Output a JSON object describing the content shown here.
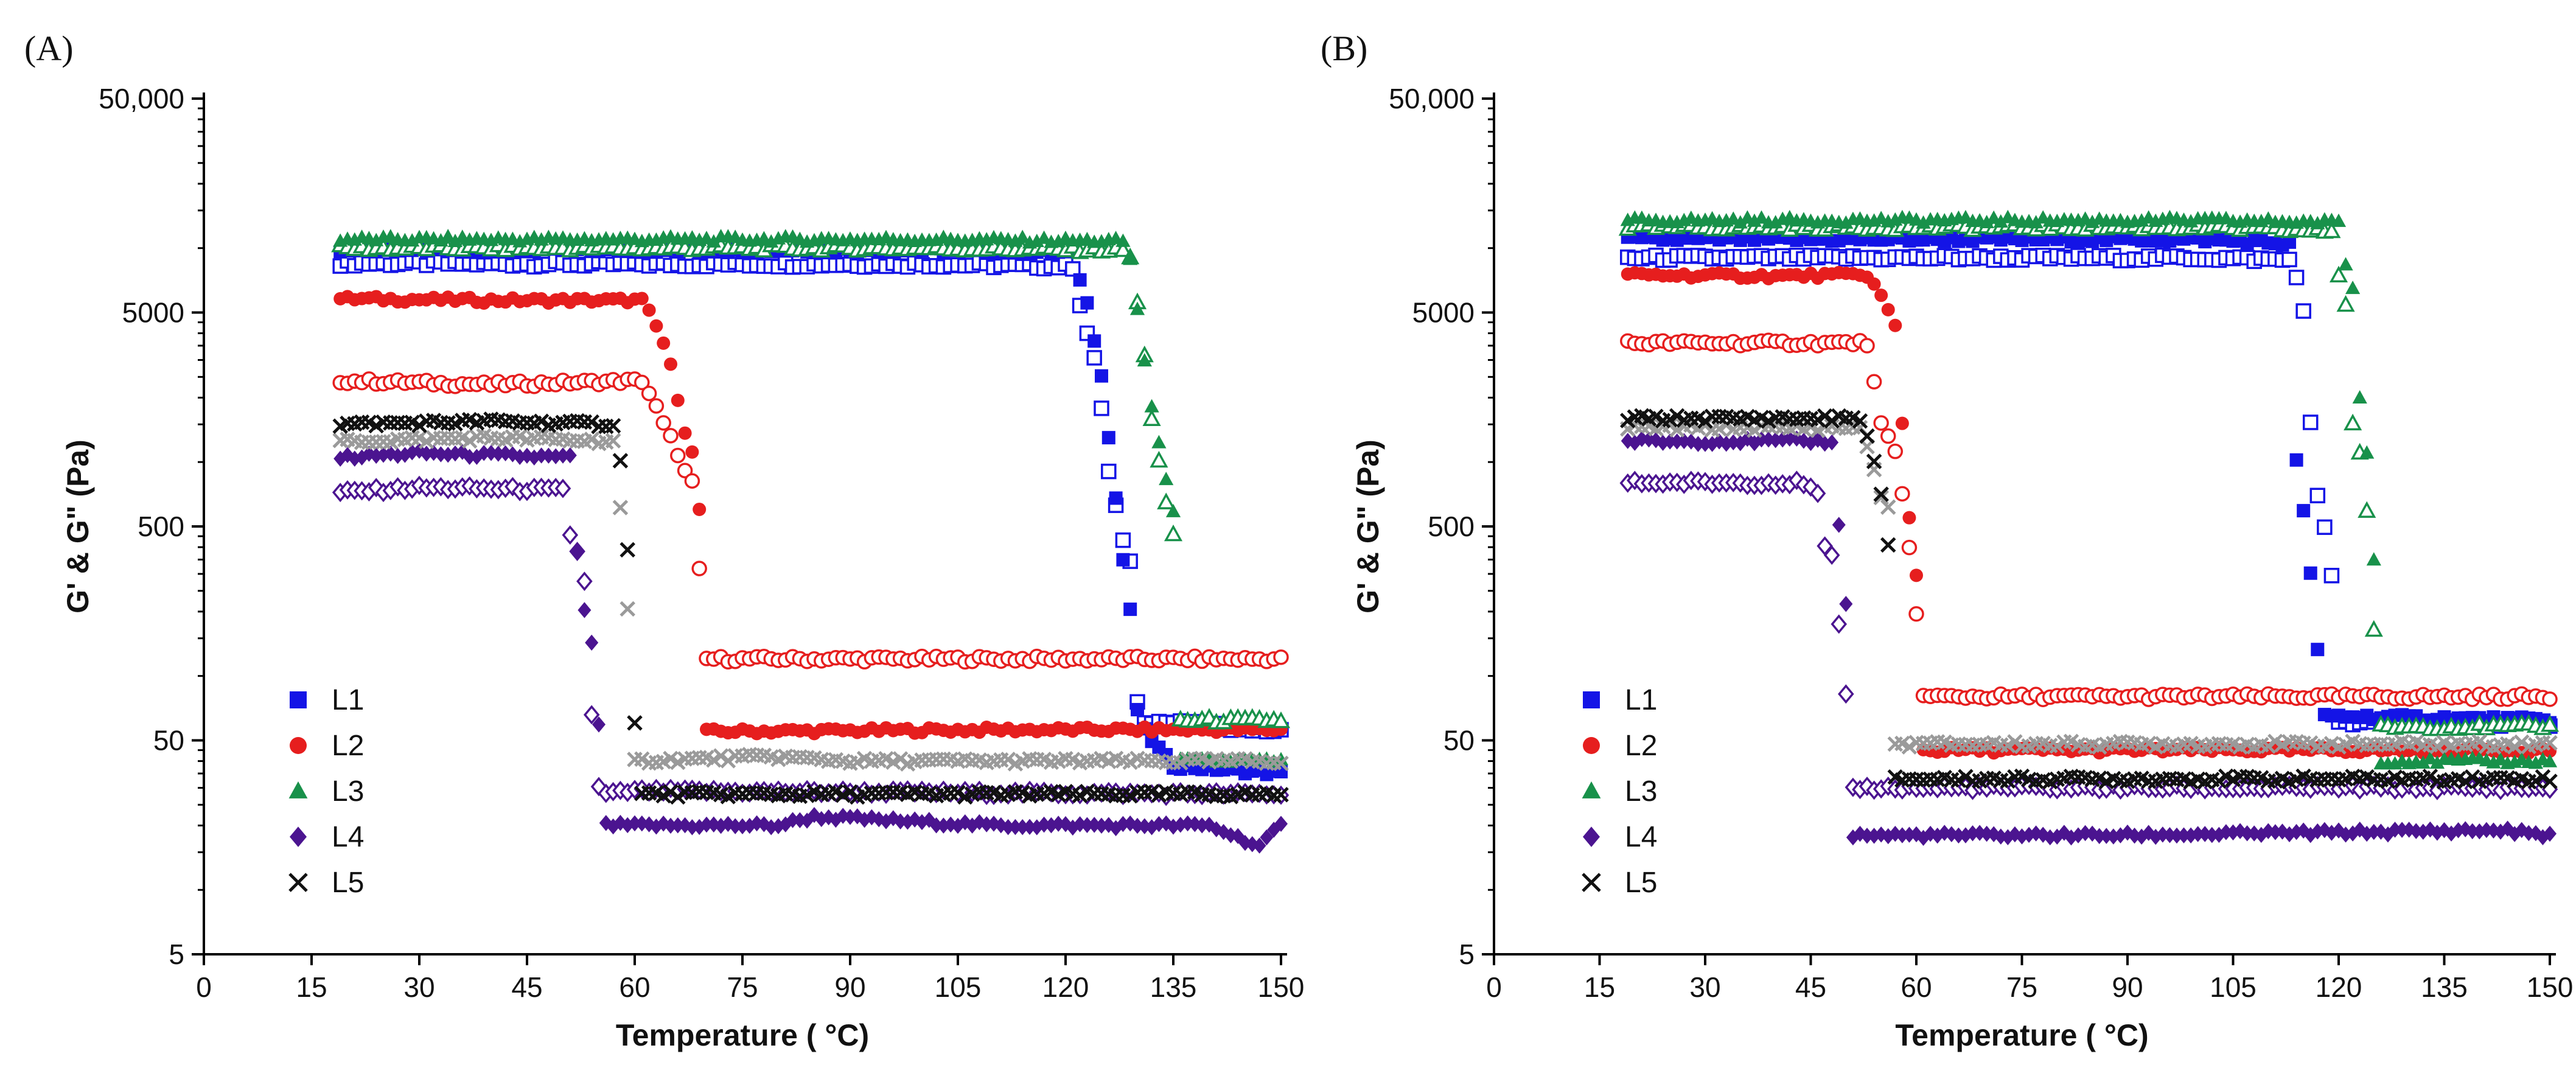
{
  "panels": [
    {
      "label": "(A)"
    },
    {
      "label": "(B)"
    }
  ],
  "chart_data": [
    {
      "type": "scatter",
      "panel": "(A)",
      "title": "",
      "xlabel": "Temperature ( °C)",
      "ylabel": "G' & G\" (Pa)",
      "xlim": [
        0,
        150
      ],
      "ylim": [
        5,
        50000
      ],
      "yscale": "log",
      "x_ticks": [
        0,
        15,
        30,
        45,
        60,
        75,
        90,
        105,
        120,
        135,
        150
      ],
      "y_ticks": [
        5,
        50,
        500,
        5000,
        50000
      ],
      "y_tick_labels": [
        "5",
        "50",
        "500",
        "5000",
        "50,000"
      ],
      "legend": [
        "L1",
        "L2",
        "L3",
        "L4",
        "L5"
      ],
      "legend_position": "bottom-left",
      "series": [
        {
          "name": "L1",
          "color": "#1414e6",
          "marker": "square",
          "Gprime": [
            [
              19,
              9800
            ],
            [
              60,
              9800
            ],
            [
              100,
              9800
            ],
            [
              121,
              9500
            ],
            [
              123,
              5500
            ],
            [
              125,
              2600
            ],
            [
              126,
              1300
            ],
            [
              127,
              680
            ],
            [
              128,
              350
            ],
            [
              129,
              200
            ],
            [
              130,
              70
            ],
            [
              131,
              55
            ],
            [
              135,
              38
            ],
            [
              150,
              35
            ]
          ],
          "Gdoubleprime": [
            [
              19,
              8500
            ],
            [
              60,
              8400
            ],
            [
              100,
              8400
            ],
            [
              121,
              8200
            ],
            [
              122,
              5500
            ],
            [
              123,
              4000
            ],
            [
              124,
              3000
            ],
            [
              125,
              1800
            ],
            [
              126,
              900
            ],
            [
              127,
              620
            ],
            [
              128,
              420
            ],
            [
              129,
              350
            ],
            [
              130,
              75
            ],
            [
              131,
              62
            ],
            [
              150,
              55
            ]
          ]
        },
        {
          "name": "L2",
          "color": "#e61e1e",
          "marker": "circle",
          "Gprime": [
            [
              19,
              5800
            ],
            [
              40,
              5700
            ],
            [
              61,
              5700
            ],
            [
              62,
              5000
            ],
            [
              63,
              4300
            ],
            [
              64,
              3600
            ],
            [
              65,
              2800
            ],
            [
              66,
              2000
            ],
            [
              67,
              1400
            ],
            [
              68,
              1100
            ],
            [
              69,
              600
            ],
            [
              70,
              55
            ],
            [
              110,
              56
            ],
            [
              150,
              56
            ]
          ],
          "Gdoubleprime": [
            [
              19,
              2400
            ],
            [
              40,
              2300
            ],
            [
              61,
              2400
            ],
            [
              62,
              2100
            ],
            [
              63,
              1800
            ],
            [
              64,
              1500
            ],
            [
              65,
              1300
            ],
            [
              66,
              1100
            ],
            [
              67,
              900
            ],
            [
              68,
              800
            ],
            [
              70,
              120
            ],
            [
              110,
              120
            ],
            [
              150,
              120
            ]
          ]
        },
        {
          "name": "L3",
          "color": "#18914a",
          "marker": "triangle",
          "Gprime": [
            [
              19,
              11000
            ],
            [
              60,
              11000
            ],
            [
              100,
              11000
            ],
            [
              128,
              10800
            ],
            [
              129,
              8800
            ],
            [
              130,
              5200
            ],
            [
              131,
              3000
            ],
            [
              132,
              1800
            ],
            [
              133,
              1200
            ],
            [
              134,
              850
            ],
            [
              135,
              600
            ],
            [
              136,
              40
            ],
            [
              150,
              40
            ]
          ],
          "Gdoubleprime": [
            [
              19,
              10000
            ],
            [
              60,
              10000
            ],
            [
              100,
              10000
            ],
            [
              128,
              9800
            ],
            [
              129,
              9000
            ],
            [
              130,
              5500
            ],
            [
              131,
              3200
            ],
            [
              132,
              1600
            ],
            [
              133,
              1000
            ],
            [
              134,
              630
            ],
            [
              135,
              460
            ],
            [
              136,
              62
            ],
            [
              150,
              62
            ]
          ]
        },
        {
          "name": "L4",
          "color": "#4b1490",
          "marker": "diamond",
          "Gprime": [
            [
              19,
              1050
            ],
            [
              30,
              1100
            ],
            [
              51,
              1050
            ],
            [
              52,
              380
            ],
            [
              53,
              200
            ],
            [
              54,
              140
            ],
            [
              55,
              60
            ],
            [
              56,
              20
            ],
            [
              80,
              20
            ],
            [
              85,
              22
            ],
            [
              110,
              20
            ],
            [
              140,
              20
            ],
            [
              147,
              16
            ],
            [
              150,
              20
            ]
          ],
          "Gdoubleprime": [
            [
              19,
              720
            ],
            [
              30,
              760
            ],
            [
              50,
              740
            ],
            [
              51,
              460
            ],
            [
              52,
              380
            ],
            [
              53,
              280
            ],
            [
              54,
              65
            ],
            [
              55,
              30
            ],
            [
              56,
              28
            ],
            [
              60,
              29
            ],
            [
              150,
              28
            ]
          ]
        },
        {
          "name": "L5",
          "color": "#111111",
          "marker": "x",
          "Gprime": [
            [
              19,
              1500
            ],
            [
              40,
              1550
            ],
            [
              57,
              1500
            ],
            [
              58,
              1000
            ],
            [
              59,
              400
            ],
            [
              60,
              60
            ],
            [
              61,
              28
            ],
            [
              90,
              28
            ],
            [
              150,
              28
            ]
          ],
          "Gdoubleprime": [
            [
              19,
              1250
            ],
            [
              40,
              1300
            ],
            [
              57,
              1250
            ],
            [
              58,
              600
            ],
            [
              59,
              200
            ],
            [
              60,
              40
            ],
            [
              79,
              42
            ],
            [
              90,
              40
            ],
            [
              150,
              40
            ]
          ]
        }
      ]
    },
    {
      "type": "scatter",
      "panel": "(B)",
      "title": "",
      "xlabel": "Temperature ( °C)",
      "ylabel": "G' & G\" (Pa)",
      "xlim": [
        0,
        150
      ],
      "ylim": [
        5,
        50000
      ],
      "yscale": "log",
      "x_ticks": [
        0,
        15,
        30,
        45,
        60,
        75,
        90,
        105,
        120,
        135,
        150
      ],
      "y_ticks": [
        5,
        50,
        500,
        5000,
        50000
      ],
      "y_tick_labels": [
        "5",
        "50",
        "500",
        "5000",
        "50,000"
      ],
      "legend": [
        "L1",
        "L2",
        "L3",
        "L4",
        "L5"
      ],
      "legend_position": "bottom-left",
      "series": [
        {
          "name": "L1",
          "color": "#1414e6",
          "marker": "square",
          "Gprime": [
            [
              19,
              11000
            ],
            [
              60,
              11000
            ],
            [
              100,
              11000
            ],
            [
              113,
              10500
            ],
            [
              114,
              1000
            ],
            [
              115,
              600
            ],
            [
              116,
              300
            ],
            [
              117,
              130
            ],
            [
              118,
              65
            ],
            [
              119,
              65
            ],
            [
              150,
              62
            ]
          ],
          "Gdoubleprime": [
            [
              19,
              9000
            ],
            [
              60,
              9000
            ],
            [
              100,
              9000
            ],
            [
              113,
              8800
            ],
            [
              114,
              7500
            ],
            [
              115,
              5000
            ],
            [
              116,
              1500
            ],
            [
              117,
              700
            ],
            [
              118,
              500
            ],
            [
              119,
              300
            ],
            [
              120,
              60
            ],
            [
              150,
              60
            ]
          ]
        },
        {
          "name": "L2",
          "color": "#e61e1e",
          "marker": "circle",
          "Gprime": [
            [
              19,
              7500
            ],
            [
              40,
              7400
            ],
            [
              53,
              7500
            ],
            [
              55,
              6000
            ],
            [
              57,
              4300
            ],
            [
              58,
              1500
            ],
            [
              59,
              550
            ],
            [
              60,
              300
            ],
            [
              61,
              45
            ],
            [
              110,
              45
            ],
            [
              150,
              45
            ]
          ],
          "Gdoubleprime": [
            [
              19,
              3600
            ],
            [
              40,
              3600
            ],
            [
              53,
              3600
            ],
            [
              55,
              1500
            ],
            [
              57,
              1100
            ],
            [
              58,
              700
            ],
            [
              59,
              400
            ],
            [
              60,
              200
            ],
            [
              61,
              80
            ],
            [
              110,
              80
            ],
            [
              150,
              80
            ]
          ]
        },
        {
          "name": "L3",
          "color": "#18914a",
          "marker": "triangle",
          "Gprime": [
            [
              19,
              13500
            ],
            [
              60,
              13500
            ],
            [
              100,
              13500
            ],
            [
              120,
              13200
            ],
            [
              121,
              8500
            ],
            [
              122,
              6500
            ],
            [
              123,
              2000
            ],
            [
              124,
              1100
            ],
            [
              125,
              350
            ],
            [
              126,
              40
            ],
            [
              150,
              40
            ]
          ],
          "Gdoubleprime": [
            [
              19,
              12500
            ],
            [
              60,
              12500
            ],
            [
              100,
              12500
            ],
            [
              119,
              12000
            ],
            [
              120,
              7500
            ],
            [
              121,
              5500
            ],
            [
              122,
              1500
            ],
            [
              123,
              1100
            ],
            [
              124,
              600
            ],
            [
              125,
              160
            ],
            [
              126,
              58
            ],
            [
              150,
              58
            ]
          ]
        },
        {
          "name": "L4",
          "color": "#4b1490",
          "marker": "diamond",
          "Gprime": [
            [
              19,
              1250
            ],
            [
              40,
              1250
            ],
            [
              48,
              1250
            ],
            [
              49,
              500
            ],
            [
              50,
              220
            ],
            [
              51,
              18
            ],
            [
              70,
              18
            ],
            [
              90,
              18
            ],
            [
              143,
              19
            ],
            [
              150,
              18
            ]
          ],
          "Gdoubleprime": [
            [
              19,
              800
            ],
            [
              30,
              800
            ],
            [
              44,
              800
            ],
            [
              46,
              700
            ],
            [
              47,
              400
            ],
            [
              48,
              360
            ],
            [
              50,
              80
            ],
            [
              51,
              30
            ],
            [
              80,
              30
            ],
            [
              150,
              30
            ]
          ]
        },
        {
          "name": "L5",
          "color": "#111111",
          "marker": "x",
          "Gprime": [
            [
              19,
              1600
            ],
            [
              40,
              1600
            ],
            [
              52,
              1600
            ],
            [
              53,
              1300
            ],
            [
              54,
              1000
            ],
            [
              55,
              700
            ],
            [
              56,
              400
            ],
            [
              57,
              33
            ],
            [
              100,
              33
            ],
            [
              150,
              33
            ]
          ],
          "Gdoubleprime": [
            [
              19,
              1450
            ],
            [
              40,
              1450
            ],
            [
              52,
              1450
            ],
            [
              53,
              1200
            ],
            [
              54,
              900
            ],
            [
              55,
              700
            ],
            [
              56,
              600
            ],
            [
              57,
              48
            ],
            [
              100,
              48
            ],
            [
              150,
              48
            ]
          ]
        }
      ]
    }
  ]
}
